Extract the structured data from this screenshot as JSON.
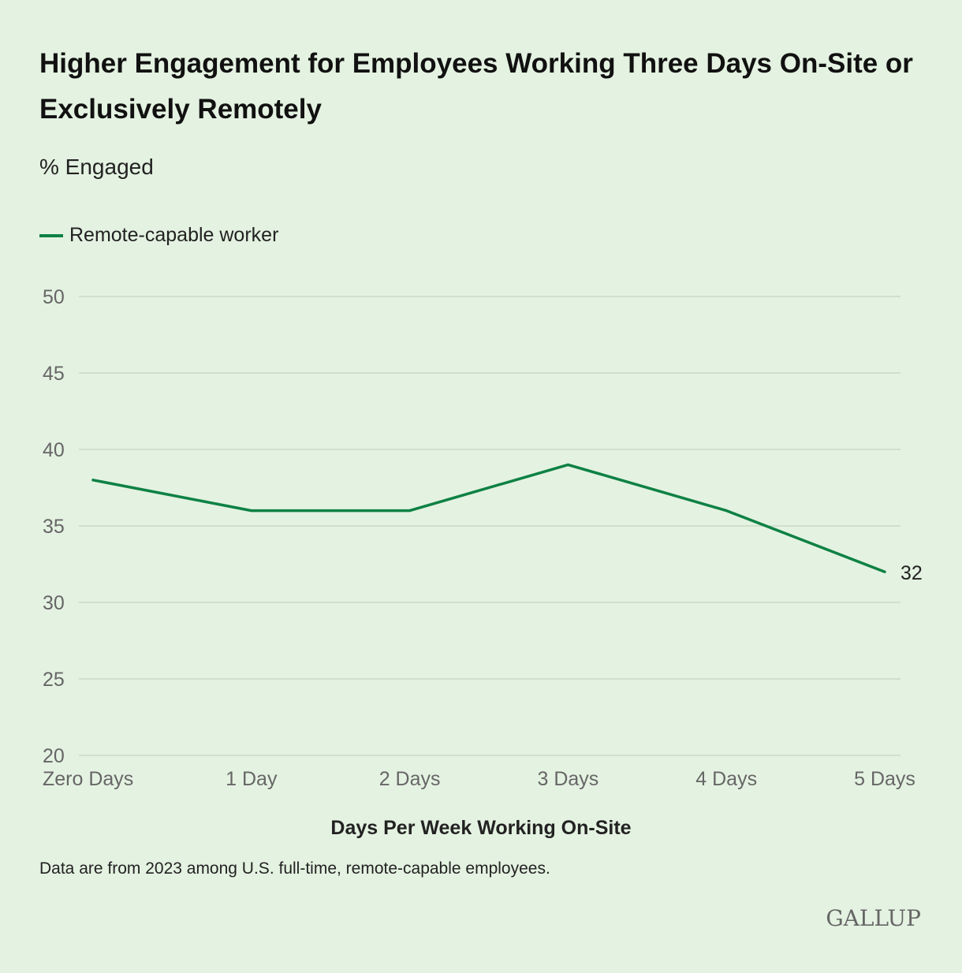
{
  "title": "Higher Engagement for Employees Working Three Days On-Site or Exclusively Remotely",
  "subtitle": "% Engaged",
  "legend": {
    "label": "Remote-capable worker"
  },
  "note": "Data are from 2023 among U.S. full-time, remote-capable employees.",
  "logo": "GALLUP",
  "colors": {
    "line": "#0d8144",
    "grid": "#c9d9c6",
    "background": "#e4f2e1"
  },
  "chart_data": {
    "type": "line",
    "title": "Higher Engagement for Employees Working Three Days On-Site or Exclusively Remotely",
    "ylabel": "% Engaged",
    "xlabel": "Days Per Week Working On-Site",
    "categories": [
      "Zero Days",
      "1 Day",
      "2 Days",
      "3 Days",
      "4 Days",
      "5 Days"
    ],
    "series": [
      {
        "name": "Remote-capable worker",
        "values": [
          38,
          36,
          36,
          39,
          36,
          32
        ]
      }
    ],
    "ylim": [
      20,
      50
    ],
    "yticks": [
      20,
      25,
      30,
      35,
      40,
      45,
      50
    ],
    "end_label": "32",
    "grid": true,
    "legend_position": "top-left"
  }
}
